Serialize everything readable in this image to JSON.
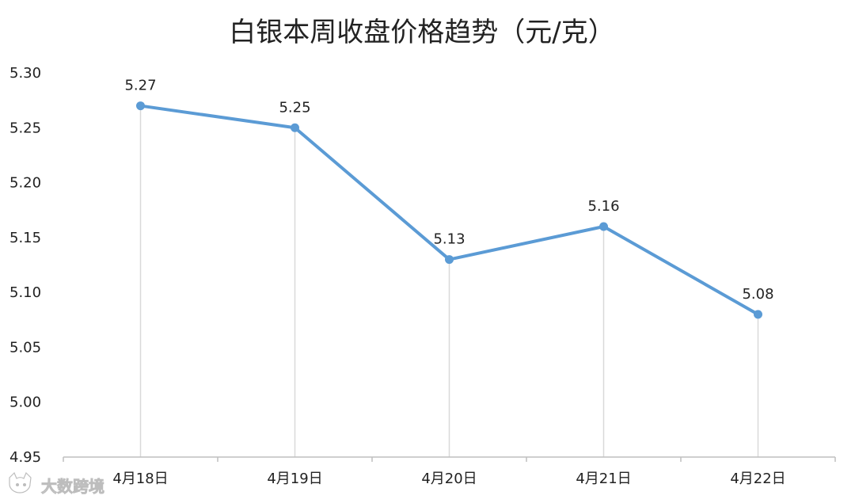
{
  "chart_data": {
    "type": "line",
    "title": "白银本周收盘价格趋势（元/克）",
    "categories": [
      "4月18日",
      "4月19日",
      "4月20日",
      "4月21日",
      "4月22日"
    ],
    "series": [
      {
        "values": [
          5.27,
          5.25,
          5.13,
          5.16,
          5.08
        ],
        "color": "#5b9bd5"
      }
    ],
    "data_labels": [
      "5.27",
      "5.25",
      "5.13",
      "5.16",
      "5.08"
    ],
    "yticks": [
      "4.95",
      "5.00",
      "5.05",
      "5.10",
      "5.15",
      "5.20",
      "5.25",
      "5.30"
    ],
    "ylim": [
      4.95,
      5.3
    ],
    "xlabel": "",
    "ylabel": "",
    "grid": "vertical drop lines",
    "legend": "none"
  },
  "watermark": {
    "text": "大数跨境",
    "icon": "cat-face-icon"
  },
  "colors": {
    "line": "#5b9bd5",
    "axis": "#bfbfbf",
    "dropline": "#d9d9d9"
  }
}
